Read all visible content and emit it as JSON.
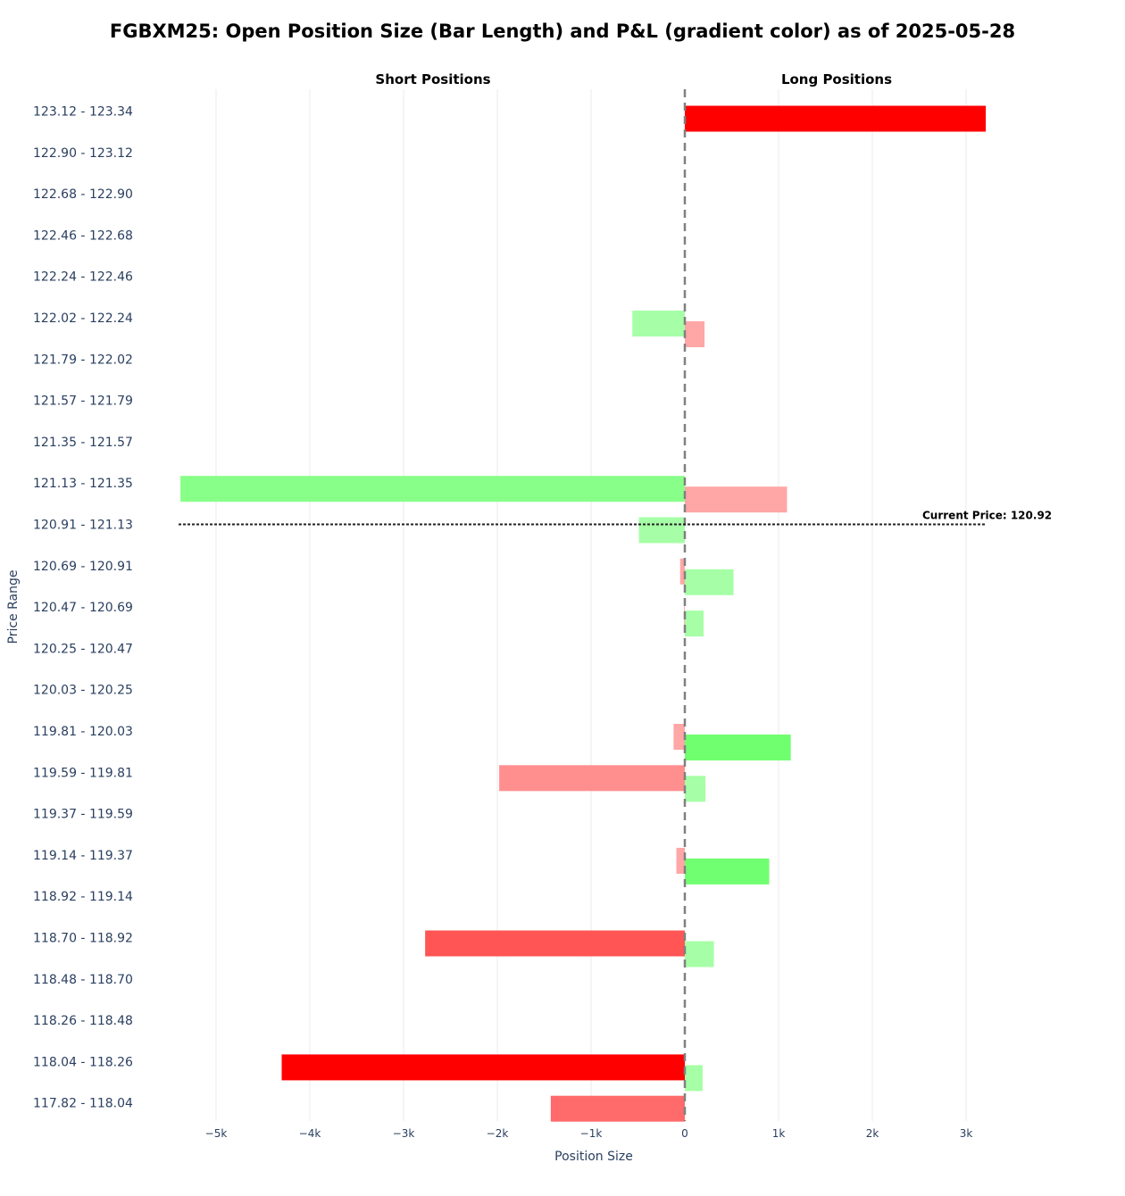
{
  "title": "FGBXM25: Open Position Size (Bar Length) and P&L (gradient color) as of 2025-05-28",
  "chart_data": {
    "type": "bar",
    "orientation": "horizontal",
    "title": "FGBXM25: Open Position Size (Bar Length) and P&L (gradient color) as of 2025-05-28",
    "xlabel": "Position Size",
    "ylabel": "Price Range",
    "xlim": [
      -5400,
      3400
    ],
    "x_ticks": [
      {
        "value": -5000,
        "label": "−5k"
      },
      {
        "value": -4000,
        "label": "−4k"
      },
      {
        "value": -3000,
        "label": "−3k"
      },
      {
        "value": -2000,
        "label": "−2k"
      },
      {
        "value": -1000,
        "label": "−1k"
      },
      {
        "value": 0,
        "label": "0"
      },
      {
        "value": 1000,
        "label": "1k"
      },
      {
        "value": 2000,
        "label": "2k"
      },
      {
        "value": 3000,
        "label": "3k"
      }
    ],
    "side_labels": {
      "short": "Short Positions",
      "long": "Long Positions"
    },
    "grid": true,
    "categories": [
      "123.12 - 123.34",
      "122.90 - 123.12",
      "122.68 - 122.90",
      "122.46 - 122.68",
      "122.24 - 122.46",
      "122.02 - 122.24",
      "121.79 - 122.02",
      "121.57 - 121.79",
      "121.35 - 121.57",
      "121.13 - 121.35",
      "120.91 - 121.13",
      "120.69 - 120.91",
      "120.47 - 120.69",
      "120.25 - 120.47",
      "120.03 - 120.25",
      "119.81 - 120.03",
      "119.59 - 119.81",
      "119.37 - 119.59",
      "119.14 - 119.37",
      "118.92 - 119.14",
      "118.70 - 118.92",
      "118.48 - 118.70",
      "118.26 - 118.48",
      "118.04 - 118.26",
      "117.82 - 118.04"
    ],
    "series": [
      {
        "name": "Short Positions",
        "values": [
          0,
          0,
          0,
          0,
          0,
          -560,
          0,
          0,
          0,
          -5380,
          -490,
          -50,
          -10,
          0,
          0,
          -120,
          -1980,
          0,
          -90,
          0,
          -2770,
          0,
          0,
          -4300,
          -1430
        ],
        "colors": [
          "",
          "",
          "",
          "",
          "",
          "#a6ffa6",
          "",
          "",
          "",
          "#88ff88",
          "#a6ffa6",
          "#ffa6a6",
          "#ffb3b3",
          "",
          "",
          "#ffa6a6",
          "#ff8f8f",
          "",
          "#ffa6a6",
          "",
          "#ff5555",
          "",
          "",
          "#ff0000",
          "#ff6b6b"
        ]
      },
      {
        "name": "Long Positions",
        "values": [
          3210,
          0,
          0,
          0,
          0,
          210,
          0,
          0,
          0,
          1090,
          0,
          520,
          200,
          0,
          0,
          1130,
          220,
          0,
          900,
          0,
          310,
          0,
          0,
          190,
          0
        ],
        "colors": [
          "#ff0000",
          "",
          "",
          "",
          "",
          "#ffa6a6",
          "",
          "",
          "",
          "#ffa6a6",
          "",
          "#a6ffa6",
          "#a6ffa6",
          "",
          "",
          "#6fff6f",
          "#a6ffa6",
          "",
          "#70ff70",
          "",
          "#a6ffa6",
          "",
          "",
          "#a6ffa6",
          ""
        ]
      }
    ],
    "current_price": {
      "value": 120.92,
      "label": "Current Price: 120.92",
      "category_index": 10
    }
  }
}
